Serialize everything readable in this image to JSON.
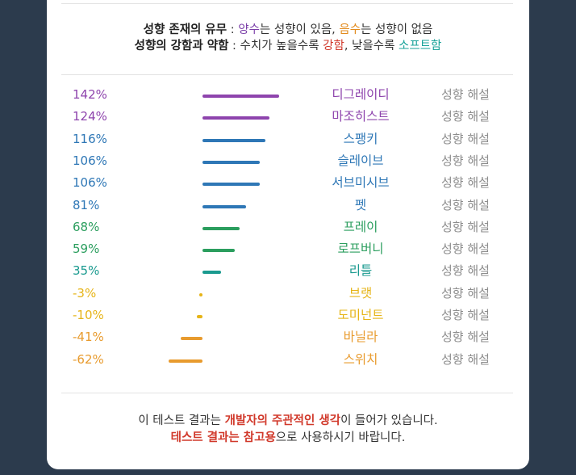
{
  "legend": {
    "line1": {
      "head": "성향 존재의 유무",
      "sep": " : ",
      "pos_word": "양수",
      "pos_text": "는 성향이 있음, ",
      "neg_word": "음수",
      "neg_text": "는 성향이 없음"
    },
    "line2": {
      "head": "성향의 강함과 약함",
      "sep": " : 수치가 높을수록 ",
      "strong_word": "강함",
      "mid_text": ", 낮을수록 ",
      "soft_word": "소프트함"
    }
  },
  "detail_label": "성향 해설",
  "items": [
    {
      "percent": "142%",
      "value": 142,
      "name": "디그레이디",
      "color": "#8e44ad"
    },
    {
      "percent": "124%",
      "value": 124,
      "name": "마조히스트",
      "color": "#8e44ad"
    },
    {
      "percent": "116%",
      "value": 116,
      "name": "스팽키",
      "color": "#2e77b6"
    },
    {
      "percent": "106%",
      "value": 106,
      "name": "슬레이브",
      "color": "#2e77b6"
    },
    {
      "percent": "106%",
      "value": 106,
      "name": "서브미시브",
      "color": "#2e77b6"
    },
    {
      "percent": "81%",
      "value": 81,
      "name": "펫",
      "color": "#2e77b6"
    },
    {
      "percent": "68%",
      "value": 68,
      "name": "프레이",
      "color": "#2b9e5e"
    },
    {
      "percent": "59%",
      "value": 59,
      "name": "로프버니",
      "color": "#2b9e5e"
    },
    {
      "percent": "35%",
      "value": 35,
      "name": "리틀",
      "color": "#1a9a8f"
    },
    {
      "percent": "-3%",
      "value": -3,
      "name": "브랫",
      "color": "#e6b417"
    },
    {
      "percent": "-10%",
      "value": -10,
      "name": "도미넌트",
      "color": "#e6b417"
    },
    {
      "percent": "-41%",
      "value": -41,
      "name": "바닐라",
      "color": "#e89b2e"
    },
    {
      "percent": "-62%",
      "value": -62,
      "name": "스위치",
      "color": "#e89b2e"
    }
  ],
  "footer": {
    "line1_a": "이 테스트 결과는 ",
    "line1_b": "개발자의 주관적인 생각",
    "line1_c": "이 들어가 있습니다.",
    "line2_a": "테스트 결과는 참고용",
    "line2_b": "으로 사용하시기 바랍니다."
  }
}
